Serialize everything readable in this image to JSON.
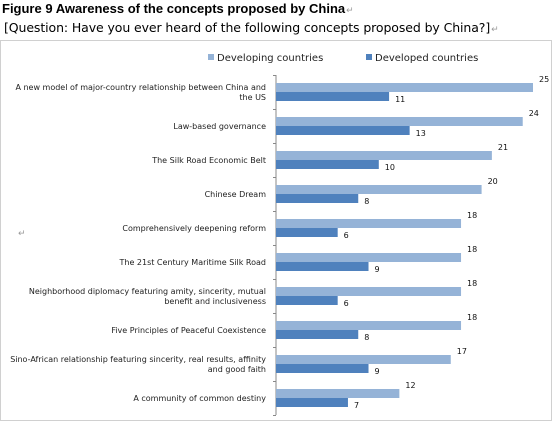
{
  "figure": {
    "title": "Figure 9 Awareness of the concepts proposed by China",
    "question": "[Question:  Have you ever heard of the following  concepts proposed  by China?]",
    "edit_mark": "↵"
  },
  "colors": {
    "developing": "#95b3d7",
    "developed": "#4f81bd",
    "axis": "#888888"
  },
  "chart_data": {
    "type": "bar",
    "orientation": "horizontal",
    "categories": [
      "A new model of major-country relationship between China and the US",
      "Law-based governance",
      "The Silk Road Economic Belt",
      "Chinese Dream",
      "Comprehensively deepening reform",
      "The 21st Century Maritime Silk Road",
      "Neighborhood diplomacy featuring amity, sincerity, mutual benefit and inclusiveness",
      "Five Principles of Peaceful Coexistence",
      "Sino-African relationship featuring sincerity, real results, affinity and good faith",
      "A community of common destiny"
    ],
    "category_lines": [
      [
        "A new model of major-country relationship between China and",
        "the US"
      ],
      [
        "Law-based governance"
      ],
      [
        "The Silk Road Economic Belt"
      ],
      [
        "Chinese Dream"
      ],
      [
        "Comprehensively deepening reform"
      ],
      [
        "The 21st Century Maritime Silk Road"
      ],
      [
        "Neighborhood diplomacy featuring amity, sincerity, mutual",
        "benefit and inclusiveness"
      ],
      [
        "Five Principles of Peaceful Coexistence"
      ],
      [
        "Sino-African relationship featuring sincerity, real results, affinity",
        "and good faith"
      ],
      [
        "A community of common destiny"
      ]
    ],
    "series": [
      {
        "name": "Developing countries",
        "values": [
          25,
          24,
          21,
          20,
          18,
          18,
          18,
          18,
          17,
          12
        ]
      },
      {
        "name": "Developed countries",
        "values": [
          11,
          13,
          10,
          8,
          6,
          9,
          6,
          8,
          9,
          7
        ]
      }
    ],
    "xlim": [
      0,
      25
    ],
    "legend": "top",
    "grid": false
  }
}
